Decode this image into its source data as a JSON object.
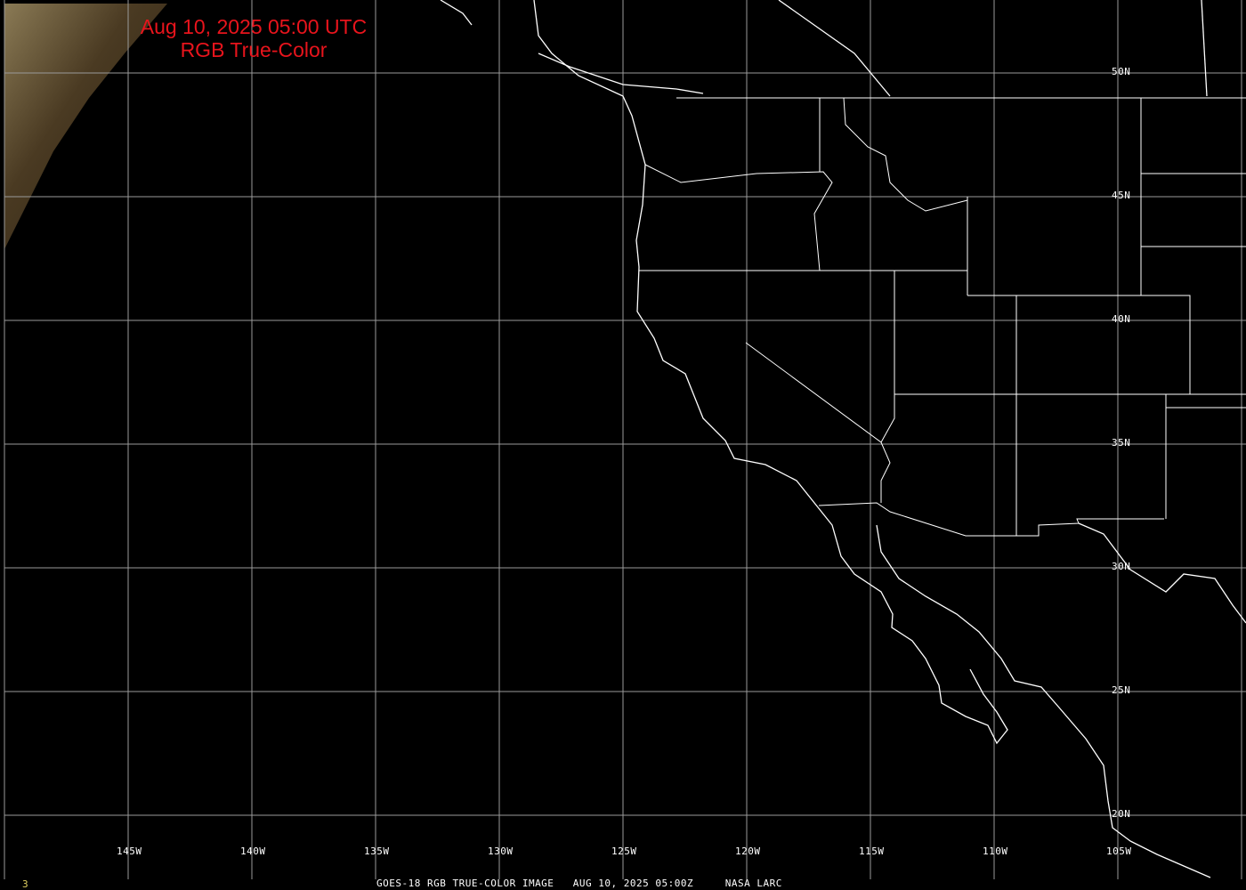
{
  "title": {
    "line1": "Aug 10, 2025 05:00 UTC",
    "line2": "RGB True-Color"
  },
  "footer": {
    "caption": "GOES-18 RGB TRUE-COLOR IMAGE   AUG 10, 2025 05:00Z     NASA LARC",
    "frame_number": "3"
  },
  "longitude_labels": [
    "145W",
    "140W",
    "135W",
    "130W",
    "125W",
    "120W",
    "115W",
    "110W",
    "105W"
  ],
  "latitude_labels": [
    "50N",
    "45N",
    "40N",
    "35N",
    "30N",
    "25N",
    "20N"
  ],
  "colors": {
    "title": "#e8141c",
    "grid": "#9a9a9a",
    "coastline": "#ffffff",
    "background": "#000000"
  }
}
